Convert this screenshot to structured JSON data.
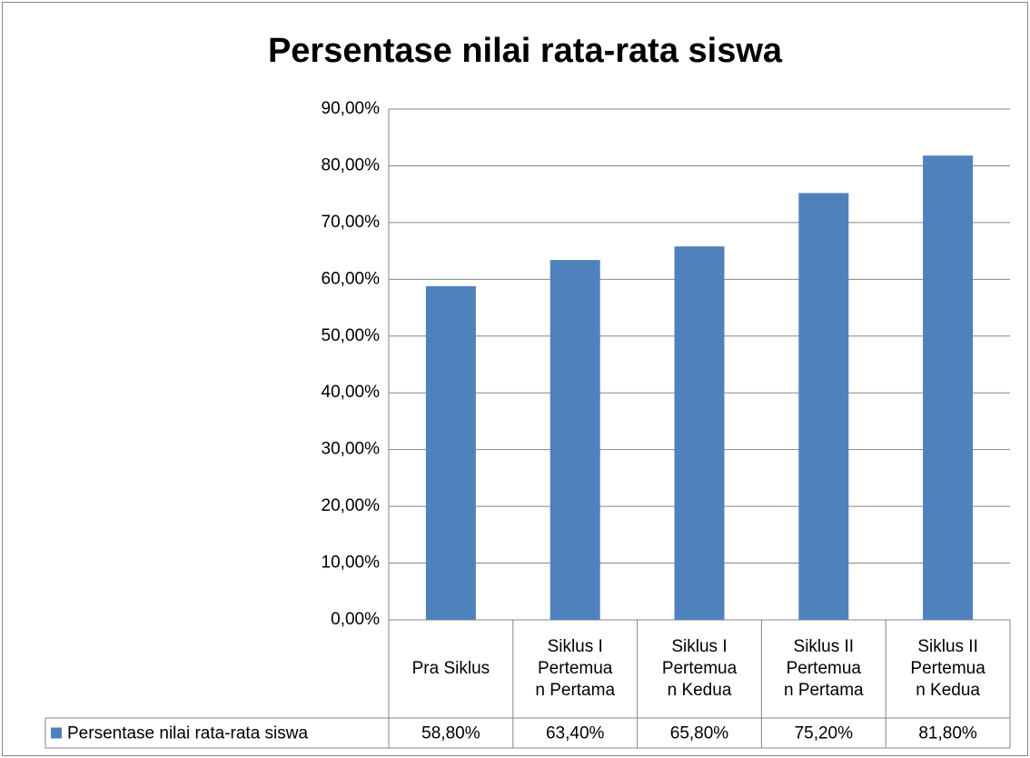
{
  "chart_data": {
    "type": "bar",
    "title": "Persentase nilai rata-rata siswa",
    "categories": [
      [
        "Pra Siklus"
      ],
      [
        "Siklus I",
        "Pertemua",
        "n Pertama"
      ],
      [
        "Siklus I",
        "Pertemua",
        "n Kedua"
      ],
      [
        "Siklus II",
        "Pertemua",
        "n Pertama"
      ],
      [
        "Siklus II",
        "Pertemua",
        "n Kedua"
      ]
    ],
    "series": [
      {
        "name": "Persentase nilai rata-rata siswa",
        "color": "#4f81bd",
        "values": [
          58.8,
          63.4,
          65.8,
          75.2,
          81.8
        ],
        "value_labels": [
          "58,80%",
          "63,40%",
          "65,80%",
          "75,20%",
          "81,80%"
        ]
      }
    ],
    "ylim": [
      0,
      90
    ],
    "yticks": [
      {
        "value": 0,
        "label": "0,00%"
      },
      {
        "value": 10,
        "label": "10,00%"
      },
      {
        "value": 20,
        "label": "20,00%"
      },
      {
        "value": 30,
        "label": "30,00%"
      },
      {
        "value": 40,
        "label": "40,00%"
      },
      {
        "value": 50,
        "label": "50,00%"
      },
      {
        "value": 60,
        "label": "60,00%"
      },
      {
        "value": 70,
        "label": "70,00%"
      },
      {
        "value": 80,
        "label": "80,00%"
      },
      {
        "value": 90,
        "label": "90,00%"
      }
    ],
    "grid": true
  }
}
